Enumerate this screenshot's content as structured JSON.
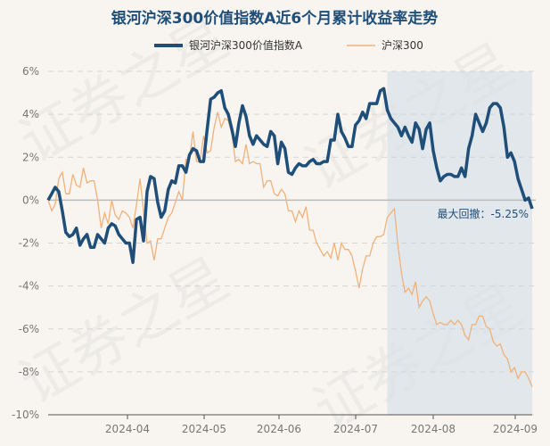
{
  "chart_data": {
    "type": "line",
    "title": "银河沪深300价值指数A近6个月累计收益率走势",
    "xlabel": "",
    "ylabel": "",
    "ylim": [
      -10,
      6
    ],
    "yticks": [
      "6%",
      "4%",
      "2%",
      "0%",
      "-2%",
      "-4%",
      "-6%",
      "-8%",
      "-10%"
    ],
    "ytick_values": [
      6,
      4,
      2,
      0,
      -2,
      -4,
      -6,
      -8,
      -10
    ],
    "xticks": [
      "2024-04",
      "2024-05",
      "2024-06",
      "2024-07",
      "2024-08",
      "2024-09"
    ],
    "legend": [
      "银河沪深300价值指数A",
      "沪深300"
    ],
    "legend_position": "top",
    "grid": true,
    "shaded_period_label": "最大回撤：-5.25%",
    "watermark": "证券之星",
    "colors": {
      "fund": "#1f4e79",
      "index": "#f0b27a",
      "shade": "#d9e1e8"
    },
    "series": [
      {
        "name": "银河沪深300价值指数A",
        "values": [
          0.0,
          0.3,
          0.6,
          0.4,
          -0.5,
          -1.5,
          -1.7,
          -1.6,
          -1.3,
          -2.1,
          -1.8,
          -1.6,
          -2.2,
          -2.2,
          -1.6,
          -1.8,
          -2.0,
          -1.3,
          -1.1,
          -1.2,
          -1.6,
          -1.8,
          -2.0,
          -2.0,
          -2.9,
          -0.9,
          -0.8,
          -1.9,
          0.4,
          1.1,
          1.0,
          -0.1,
          -0.8,
          -0.5,
          0.5,
          0.9,
          0.8,
          1.6,
          1.6,
          1.3,
          2.1,
          2.4,
          2.3,
          1.8,
          1.8,
          3.3,
          4.7,
          4.8,
          5.0,
          5.1,
          4.3,
          4.0,
          3.3,
          2.5,
          3.6,
          4.4,
          3.9,
          3.0,
          2.6,
          3.0,
          2.8,
          2.6,
          2.5,
          3.2,
          3.0,
          1.7,
          2.7,
          2.4,
          1.3,
          1.2,
          1.5,
          1.7,
          1.6,
          1.6,
          1.8,
          1.9,
          1.7,
          1.7,
          1.8,
          1.8,
          2.8,
          2.8,
          4.0,
          3.2,
          2.9,
          2.5,
          2.5,
          3.5,
          3.7,
          4.1,
          3.8,
          4.5,
          4.5,
          4.5,
          5.1,
          5.2,
          4.2,
          3.8,
          3.6,
          3.4,
          3.0,
          3.4,
          3.0,
          2.7,
          3.6,
          3.3,
          2.4,
          3.3,
          3.6,
          2.3,
          1.5,
          0.9,
          1.1,
          1.2,
          1.2,
          1.1,
          1.1,
          1.5,
          1.1,
          2.4,
          3.0,
          4.0,
          3.6,
          3.2,
          3.6,
          4.3,
          4.5,
          4.5,
          4.3,
          3.4,
          2.0,
          2.2,
          1.8,
          1.0,
          0.5,
          0.0,
          0.1,
          -0.4
        ]
      },
      {
        "name": "沪深300",
        "values": [
          0.0,
          -0.5,
          -0.2,
          1.0,
          1.3,
          0.3,
          0.3,
          1.2,
          0.7,
          0.6,
          1.5,
          0.8,
          0.9,
          0.9,
          0.0,
          -1.3,
          -0.6,
          -1.1,
          0.0,
          -0.7,
          -0.9,
          -0.5,
          -0.6,
          -0.8,
          -1.3,
          -0.2,
          1.0,
          -0.5,
          -2.0,
          -1.9,
          -2.8,
          -1.8,
          -1.8,
          -1.3,
          -0.8,
          -0.6,
          -0.1,
          0.4,
          0.0,
          1.9,
          1.9,
          3.2,
          1.8,
          1.8,
          3.0,
          2.2,
          2.3,
          3.4,
          4.1,
          3.4,
          3.8,
          3.7,
          3.1,
          1.8,
          1.9,
          1.7,
          2.6,
          1.7,
          1.8,
          1.7,
          1.7,
          0.6,
          0.9,
          0.9,
          0.3,
          0.2,
          0.5,
          0.3,
          -0.5,
          -0.5,
          -1.0,
          -0.5,
          -0.8,
          -0.3,
          -1.4,
          -1.4,
          -2.0,
          -2.3,
          -2.6,
          -2.4,
          -2.7,
          -2.0,
          -2.8,
          -2.0,
          -2.3,
          -2.3,
          -2.6,
          -3.3,
          -4.1,
          -3.2,
          -2.6,
          -2.6,
          -2.0,
          -1.7,
          -1.7,
          -1.6,
          -0.8,
          -0.6,
          -0.4,
          -2.1,
          -3.4,
          -4.3,
          -4.1,
          -4.4,
          -3.8,
          -5.0,
          -4.7,
          -4.5,
          -4.7,
          -5.3,
          -5.8,
          -5.7,
          -5.8,
          -5.8,
          -5.6,
          -5.8,
          -5.6,
          -5.8,
          -6.3,
          -6.5,
          -5.8,
          -5.8,
          -5.4,
          -5.4,
          -5.9,
          -6.0,
          -6.6,
          -6.8,
          -6.7,
          -7.2,
          -7.4,
          -8.0,
          -7.8,
          -8.3,
          -8.0,
          -8.0,
          -8.3,
          -8.7
        ]
      }
    ],
    "shade_start_index": 96
  }
}
